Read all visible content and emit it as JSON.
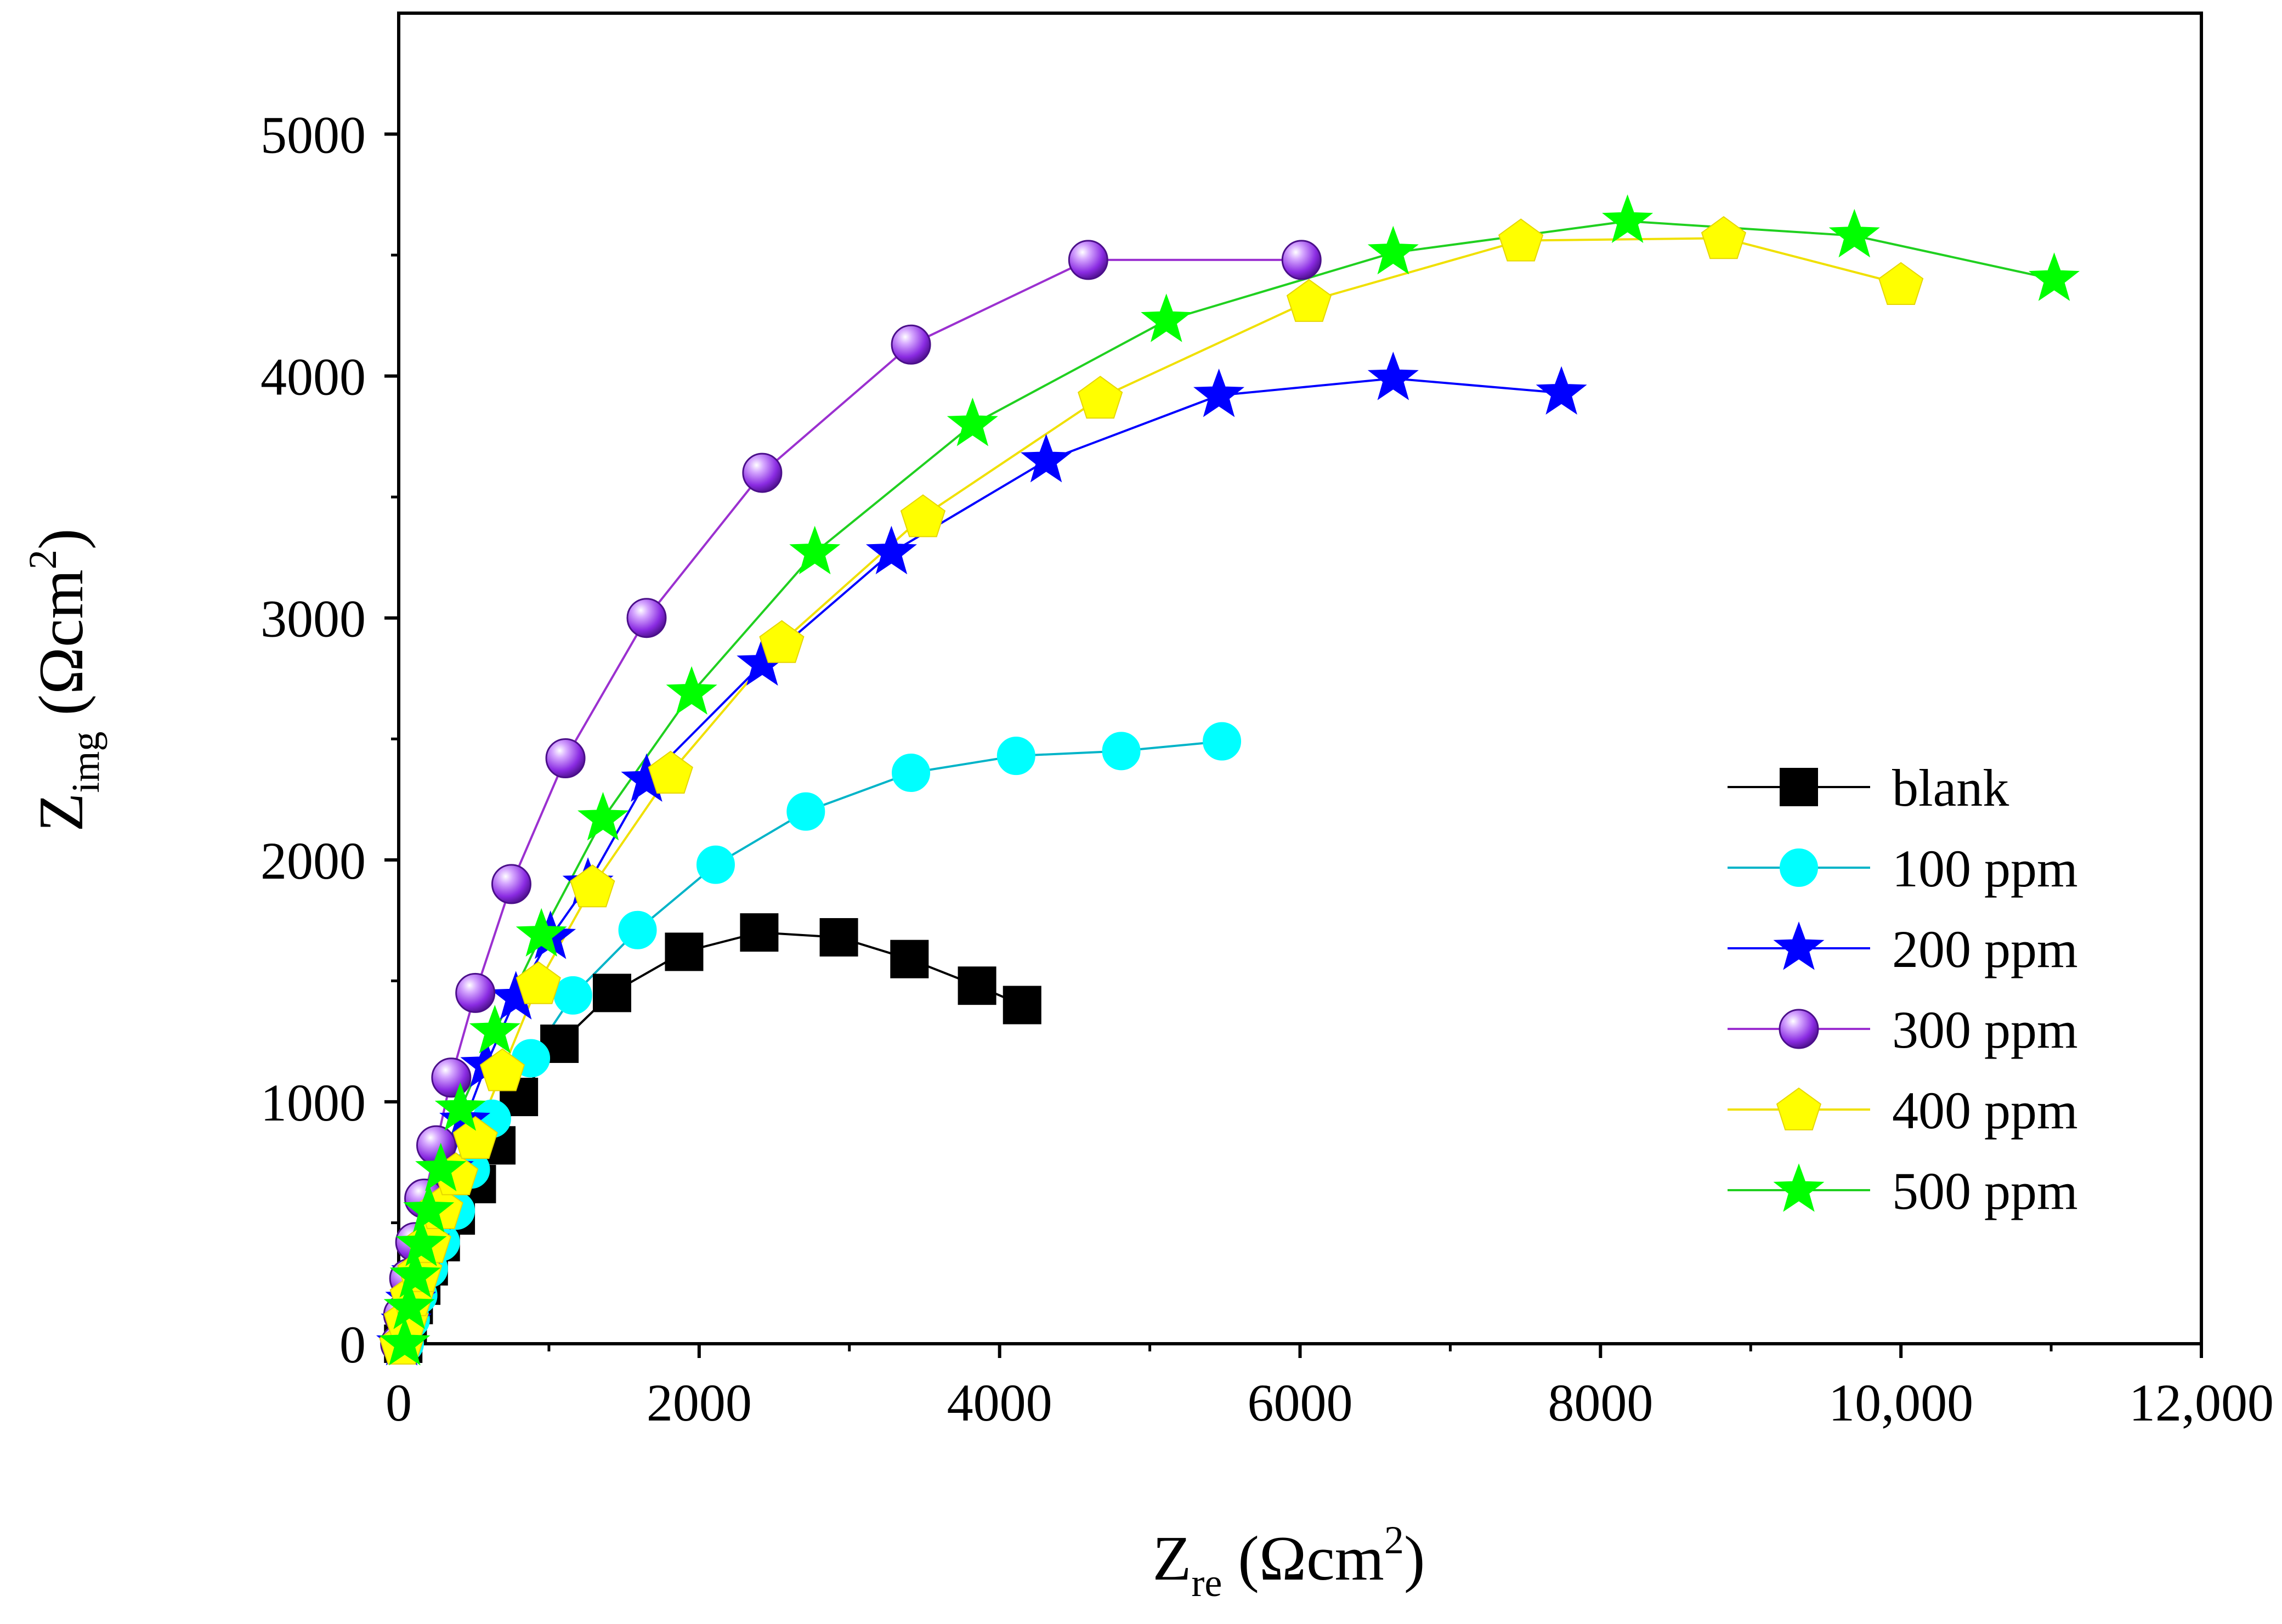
{
  "chart_data": {
    "type": "scatter",
    "title": "",
    "xlabel": {
      "main": "Z",
      "sub": "re",
      "unit": "(Ωcm",
      "sup": "2",
      "close": ")"
    },
    "ylabel": {
      "main": "Z",
      "sub": "img",
      "unit": "(Ωcm",
      "sup": "2",
      "close": ")"
    },
    "xlim": [
      0,
      12000
    ],
    "ylim": [
      0,
      5500
    ],
    "x_ticks": [
      0,
      2000,
      4000,
      6000,
      8000,
      10000,
      12000
    ],
    "x_tick_labels": [
      "0",
      "2000",
      "4000",
      "6000",
      "8000",
      "10,000",
      "12,000"
    ],
    "y_ticks": [
      0,
      1000,
      2000,
      3000,
      4000,
      5000
    ],
    "y_tick_labels": [
      "0",
      "1000",
      "2000",
      "3000",
      "4000",
      "5000"
    ],
    "grid": false,
    "legend_position": "right",
    "series": [
      {
        "name": "blank",
        "marker": "square",
        "color": "#000000",
        "line_color": "#000000",
        "x": [
          30,
          60,
          100,
          150,
          200,
          280,
          380,
          520,
          650,
          800,
          1070,
          1420,
          1900,
          2400,
          2930,
          3400,
          3850,
          4150
        ],
        "y": [
          0,
          80,
          160,
          240,
          320,
          420,
          530,
          660,
          820,
          1020,
          1240,
          1450,
          1620,
          1700,
          1680,
          1590,
          1480,
          1400
        ]
      },
      {
        "name": "100 ppm",
        "marker": "circle",
        "color": "#00ffff",
        "line_color": "#00b4c8",
        "x": [
          40,
          80,
          130,
          200,
          280,
          380,
          480,
          620,
          880,
          1160,
          1590,
          2110,
          2710,
          3410,
          4110,
          4810,
          5480
        ],
        "y": [
          0,
          100,
          200,
          310,
          420,
          550,
          720,
          930,
          1180,
          1440,
          1710,
          1980,
          2200,
          2360,
          2430,
          2450,
          2490
        ]
      },
      {
        "name": "200 ppm",
        "marker": "star",
        "color": "#0000ff",
        "line_color": "#0000ff",
        "x": [
          20,
          50,
          80,
          120,
          170,
          240,
          330,
          440,
          580,
          780,
          1010,
          1260,
          1650,
          2420,
          3280,
          4310,
          5460,
          6620,
          7740
        ],
        "y": [
          0,
          90,
          180,
          290,
          420,
          560,
          720,
          920,
          1150,
          1430,
          1680,
          1900,
          2330,
          2810,
          3270,
          3650,
          3920,
          3990,
          3930
        ]
      },
      {
        "name": "300 ppm",
        "marker": "sphere",
        "color": "#8a2be2",
        "line_color": "#9b30d0",
        "x": [
          10,
          30,
          70,
          110,
          170,
          250,
          350,
          510,
          750,
          1110,
          1650,
          2420,
          3410,
          4590,
          6010
        ],
        "y": [
          0,
          120,
          270,
          420,
          600,
          820,
          1100,
          1450,
          1900,
          2420,
          3000,
          3600,
          4130,
          4480,
          4480
        ]
      },
      {
        "name": "400 ppm",
        "marker": "pentagon",
        "color": "#ffff00",
        "line_color": "#f0e000",
        "x": [
          20,
          50,
          90,
          140,
          200,
          280,
          380,
          510,
          690,
          930,
          1290,
          1810,
          2550,
          3490,
          4670,
          6060,
          7470,
          8820,
          10000
        ],
        "y": [
          0,
          100,
          200,
          300,
          420,
          560,
          700,
          850,
          1130,
          1490,
          1890,
          2360,
          2900,
          3420,
          3910,
          4310,
          4560,
          4570,
          4380
        ]
      },
      {
        "name": "500 ppm",
        "marker": "star",
        "color": "#00ff00",
        "line_color": "#20d020",
        "x": [
          40,
          70,
          110,
          150,
          200,
          280,
          410,
          640,
          950,
          1360,
          1950,
          2770,
          3820,
          5110,
          6620,
          8180,
          9690,
          11020
        ],
        "y": [
          0,
          150,
          280,
          410,
          550,
          720,
          970,
          1290,
          1690,
          2170,
          2690,
          3270,
          3800,
          4230,
          4510,
          4640,
          4580,
          4400
        ]
      }
    ]
  }
}
